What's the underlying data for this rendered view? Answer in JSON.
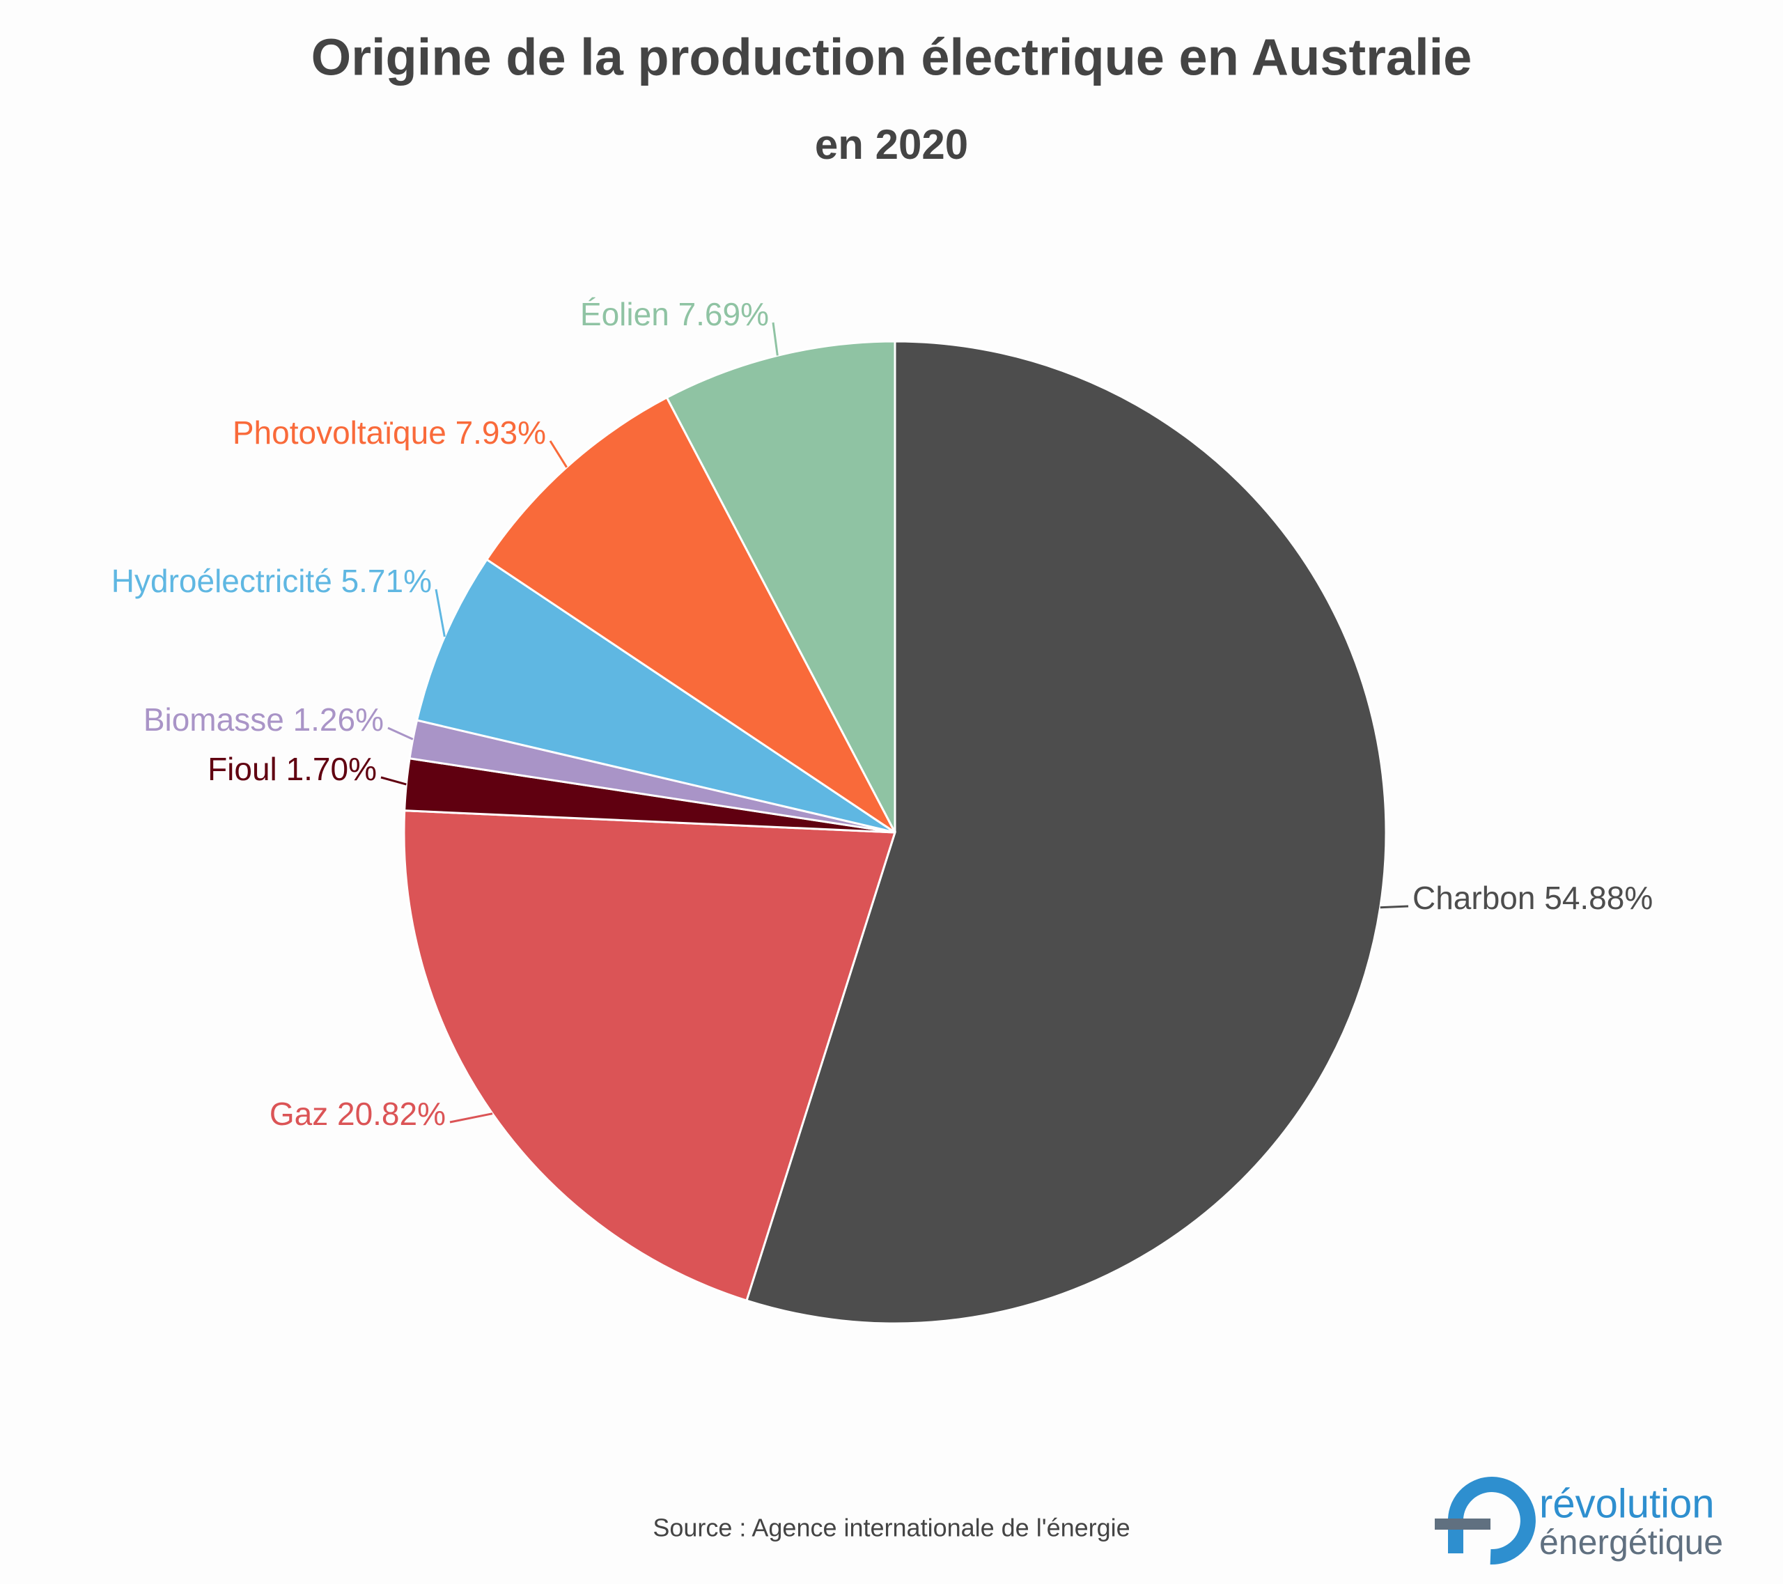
{
  "chart_data": {
    "type": "pie",
    "title": "Origine de la production électrique en Australie",
    "subtitle": "en 2020",
    "categories": [
      "Charbon",
      "Gaz",
      "Fioul",
      "Biomasse",
      "Hydroélectricité",
      "Photovoltaïque",
      "Éolien"
    ],
    "values": [
      54.88,
      20.82,
      1.7,
      1.26,
      5.71,
      7.93,
      7.69
    ],
    "value_labels": [
      "54.88%",
      "20.82%",
      "1.70%",
      "1.26%",
      "5.71%",
      "7.93%",
      "7.69%"
    ],
    "colors": [
      "#4d4d4d",
      "#db5456",
      "#600010",
      "#a994c7",
      "#5fb7e2",
      "#f96a3a",
      "#8fc3a3"
    ],
    "source": "Source : Agence internationale de l'énergie"
  },
  "logo": {
    "line1": "révolution",
    "line2": "énergétique"
  }
}
